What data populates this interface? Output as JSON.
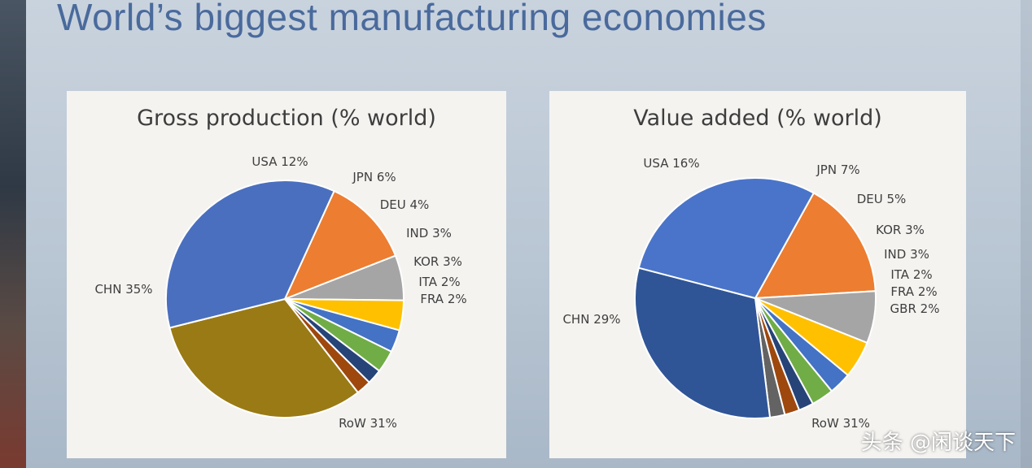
{
  "slide": {
    "title": "World’s biggest manufacturing economies"
  },
  "watermark": "头条 @闲谈天下",
  "chart_data": [
    {
      "type": "pie",
      "title": "Gross production  (% world)",
      "slices": [
        {
          "label": "USA",
          "value": 12,
          "display": "USA 12%",
          "color": "#ed7d31"
        },
        {
          "label": "JPN",
          "value": 6,
          "display": "JPN 6%",
          "color": "#a5a5a5"
        },
        {
          "label": "DEU",
          "value": 4,
          "display": "DEU 4%",
          "color": "#ffc000"
        },
        {
          "label": "IND",
          "value": 3,
          "display": "IND 3%",
          "color": "#4472c4"
        },
        {
          "label": "KOR",
          "value": 3,
          "display": "KOR 3%",
          "color": "#70ad47"
        },
        {
          "label": "ITA",
          "value": 2,
          "display": "ITA 2%",
          "color": "#264478"
        },
        {
          "label": "FRA",
          "value": 2,
          "display": "FRA 2%",
          "color": "#9e480e"
        },
        {
          "label": "RoW",
          "value": 31,
          "display": "RoW 31%",
          "color": "#9a7a14"
        },
        {
          "label": "CHN",
          "value": 35,
          "display": "CHN 35%",
          "color": "#4a6fbf"
        }
      ]
    },
    {
      "type": "pie",
      "title": "Value added (% world)",
      "slices": [
        {
          "label": "USA",
          "value": 16,
          "display": "USA 16%",
          "color": "#ed7d31"
        },
        {
          "label": "JPN",
          "value": 7,
          "display": "JPN 7%",
          "color": "#a5a5a5"
        },
        {
          "label": "DEU",
          "value": 5,
          "display": "DEU 5%",
          "color": "#ffc000"
        },
        {
          "label": "KOR",
          "value": 3,
          "display": "KOR 3%",
          "color": "#4472c4"
        },
        {
          "label": "IND",
          "value": 3,
          "display": "IND 3%",
          "color": "#70ad47"
        },
        {
          "label": "ITA",
          "value": 2,
          "display": "ITA 2%",
          "color": "#264478"
        },
        {
          "label": "FRA",
          "value": 2,
          "display": "FRA 2%",
          "color": "#9e480e"
        },
        {
          "label": "GBR",
          "value": 2,
          "display": "GBR 2%",
          "color": "#636363"
        },
        {
          "label": "RoW",
          "value": 31,
          "display": "RoW 31%",
          "color": "#2f5597"
        },
        {
          "label": "CHN",
          "value": 29,
          "display": "CHN 29%",
          "color": "#4a74c9"
        }
      ]
    }
  ]
}
